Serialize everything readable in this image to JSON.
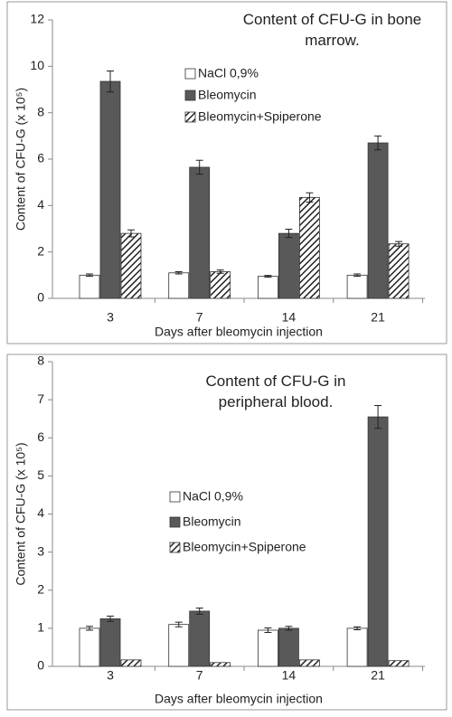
{
  "chart_data": [
    {
      "type": "bar",
      "title": "Content of CFU-G in bone marrow.",
      "x_label": "Days after bleomycin injection",
      "y_label": "Content of CFU-G (x 10⁵)",
      "categories": [
        "3",
        "7",
        "14",
        "21"
      ],
      "series": [
        {
          "name": "NaCl 0,9%",
          "color": "#ffffff",
          "values": [
            1.0,
            1.1,
            0.95,
            1.0
          ],
          "errors": [
            0.05,
            0.05,
            0.04,
            0.05
          ]
        },
        {
          "name": "Bleomycin",
          "color": "#595959",
          "values": [
            9.35,
            5.65,
            2.8,
            6.7
          ],
          "errors": [
            0.45,
            0.3,
            0.18,
            0.3
          ]
        },
        {
          "name": "Bleomycin+Spiperone",
          "color": "hatch",
          "values": [
            2.8,
            1.15,
            4.35,
            2.35
          ],
          "errors": [
            0.15,
            0.07,
            0.2,
            0.1
          ]
        }
      ],
      "ylim": [
        0,
        12
      ],
      "yticks": [
        0,
        2,
        4,
        6,
        8,
        10,
        12
      ]
    },
    {
      "type": "bar",
      "title": "Content of CFU-G in peripheral blood.",
      "x_label": "Days after bleomycin injection",
      "y_label": "Content of CFU-G (x 10⁵)",
      "categories": [
        "3",
        "7",
        "14",
        "21"
      ],
      "series": [
        {
          "name": "NaCl 0,9%",
          "color": "#ffffff",
          "values": [
            1.0,
            1.1,
            0.95,
            1.0
          ],
          "errors": [
            0.05,
            0.06,
            0.06,
            0.04
          ]
        },
        {
          "name": "Bleomycin",
          "color": "#595959",
          "values": [
            1.25,
            1.45,
            1.0,
            6.55
          ],
          "errors": [
            0.07,
            0.08,
            0.05,
            0.3
          ]
        },
        {
          "name": "Bleomycin+Spiperone",
          "color": "hatch",
          "values": [
            0.17,
            0.1,
            0.17,
            0.15
          ],
          "errors": [
            0,
            0,
            0,
            0
          ]
        }
      ],
      "ylim": [
        0,
        8
      ],
      "yticks": [
        0,
        1,
        2,
        3,
        4,
        5,
        6,
        7,
        8
      ]
    }
  ]
}
